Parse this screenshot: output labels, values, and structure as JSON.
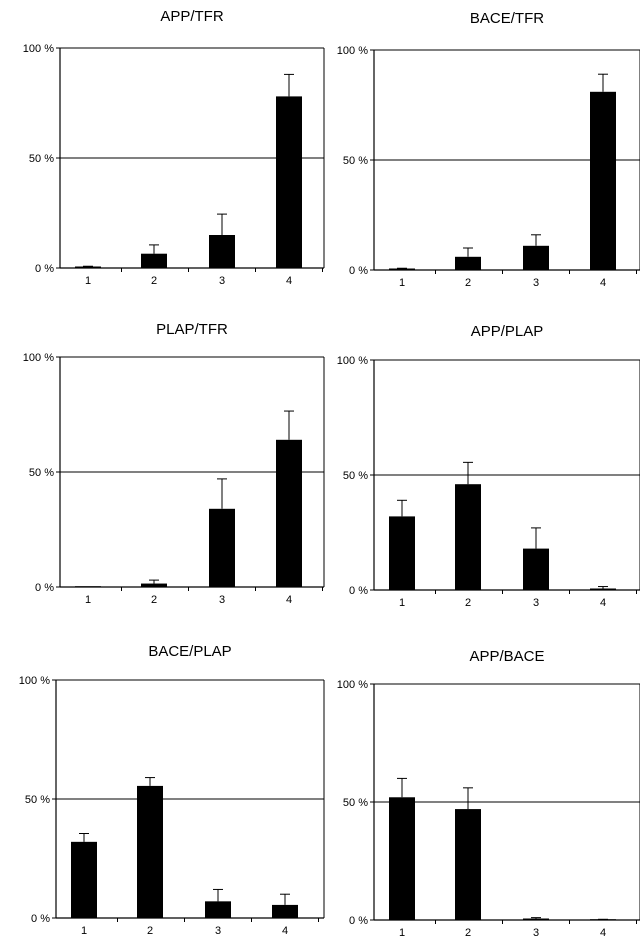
{
  "chart_data": [
    {
      "type": "bar",
      "title": "APP/TFR",
      "categories": [
        "1",
        "2",
        "3",
        "4"
      ],
      "values": [
        0.5,
        6.5,
        15,
        78
      ],
      "errors": [
        0.3,
        4,
        9.5,
        10
      ],
      "ylim": [
        0,
        100
      ],
      "yticks": [
        "0 %",
        "50 %",
        "100 %"
      ],
      "reference_line": 50,
      "grid": false
    },
    {
      "type": "bar",
      "title": "BACE/TFR",
      "categories": [
        "1",
        "2",
        "3",
        "4"
      ],
      "values": [
        0.5,
        6,
        11,
        81
      ],
      "errors": [
        0.3,
        4,
        5,
        8
      ],
      "ylim": [
        0,
        100
      ],
      "yticks": [
        "0 %",
        "50 %",
        "100 %"
      ],
      "reference_line": 50,
      "grid": false
    },
    {
      "type": "bar",
      "title": "PLAP/TFR",
      "categories": [
        "1",
        "2",
        "3",
        "4"
      ],
      "values": [
        0,
        1.5,
        34,
        64
      ],
      "errors": [
        0,
        1.5,
        13,
        12.5
      ],
      "ylim": [
        0,
        100
      ],
      "yticks": [
        "0 %",
        "50 %",
        "100 %"
      ],
      "reference_line": 50,
      "grid": false
    },
    {
      "type": "bar",
      "title": "APP/PLAP",
      "categories": [
        "1",
        "2",
        "3",
        "4"
      ],
      "values": [
        32,
        46,
        18,
        0.5
      ],
      "errors": [
        7,
        9.5,
        9,
        1
      ],
      "ylim": [
        0,
        100
      ],
      "yticks": [
        "0 %",
        "50 %",
        "100 %"
      ],
      "reference_line": 50,
      "grid": false
    },
    {
      "type": "bar",
      "title": "BACE/PLAP",
      "categories": [
        "1",
        "2",
        "3",
        "4"
      ],
      "values": [
        32,
        55.5,
        7,
        5.5
      ],
      "errors": [
        3.5,
        3.5,
        5,
        4.5
      ],
      "ylim": [
        0,
        100
      ],
      "yticks": [
        "0 %",
        "50 %",
        "100 %"
      ],
      "reference_line": 50,
      "grid": false
    },
    {
      "type": "bar",
      "title": "APP/BACE",
      "categories": [
        "1",
        "2",
        "3",
        "4"
      ],
      "values": [
        52,
        47,
        0.3,
        0
      ],
      "errors": [
        8,
        9,
        0.7,
        0.3
      ],
      "ylim": [
        0,
        100
      ],
      "yticks": [
        "0 %",
        "50 %",
        "100 %"
      ],
      "reference_line": 50,
      "grid": false
    }
  ]
}
